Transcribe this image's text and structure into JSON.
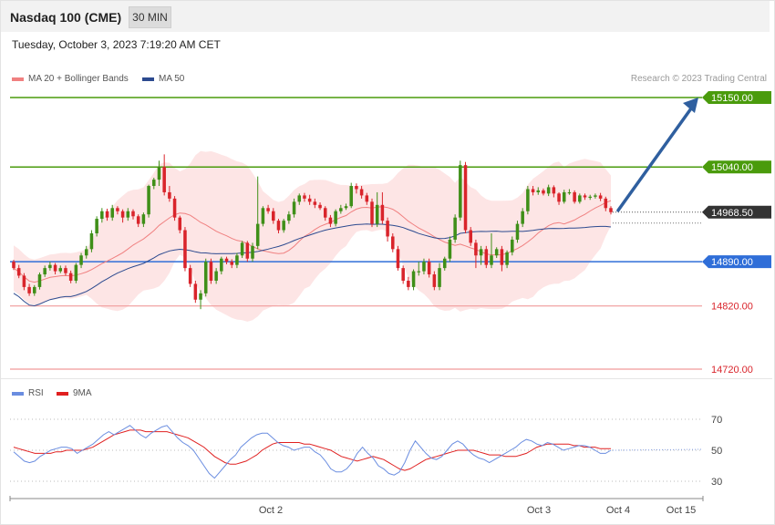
{
  "header": {
    "title": "Nasdaq 100 (CME)",
    "timeframe": "30 MIN"
  },
  "timestamp": "Tuesday, October 3, 2023 7:19:20 AM CET",
  "credit": "Research © 2023 Trading Central",
  "colors": {
    "up": "#3f8f18",
    "down": "#d9242b",
    "band_fill": "#fde1e1",
    "ma20": "#f08080",
    "ma50": "#2c4a8f",
    "green_level": "#4a9b0c",
    "blue_level": "#2f6ed8",
    "red_level": "#f19a9a",
    "rsi": "#6a8de0",
    "rsi_ma": "#e02020",
    "current_tag": "#333333",
    "arrow": "#2f5f9f"
  },
  "legend": {
    "ma20_label": "MA 20 + Bollinger Bands",
    "ma50_label": "MA 50",
    "rsi_label": "RSI",
    "rsi_ma_label": "9MA"
  },
  "chart_data": [
    {
      "type": "candlestick",
      "title": "Nasdaq 100 (CME)",
      "price_range": [
        14700,
        15170
      ],
      "levels": [
        {
          "label": "15150.00",
          "value": 15150,
          "kind": "resistance-2",
          "color": "green"
        },
        {
          "label": "15040.00",
          "value": 15040,
          "kind": "resistance-1",
          "color": "green"
        },
        {
          "label": "14968.50",
          "value": 14968.5,
          "kind": "current",
          "color": "dark"
        },
        {
          "label": "14890.00",
          "value": 14890,
          "kind": "pivot",
          "color": "blue"
        },
        {
          "label": "14820.00",
          "value": 14820,
          "kind": "support-1",
          "color": "red"
        },
        {
          "label": "14720.00",
          "value": 14720,
          "kind": "support-2",
          "color": "red"
        }
      ],
      "projection": {
        "from": 14968.5,
        "to": 15150
      },
      "candles": [
        [
          14890,
          14880,
          14893,
          14877
        ],
        [
          14880,
          14868,
          14885,
          14864
        ],
        [
          14868,
          14850,
          14872,
          14845
        ],
        [
          14850,
          14840,
          14855,
          14836
        ],
        [
          14840,
          14850,
          14853,
          14836
        ],
        [
          14850,
          14870,
          14873,
          14846
        ],
        [
          14870,
          14880,
          14884,
          14866
        ],
        [
          14880,
          14885,
          14890,
          14876
        ],
        [
          14885,
          14875,
          14888,
          14870
        ],
        [
          14875,
          14880,
          14884,
          14872
        ],
        [
          14880,
          14872,
          14884,
          14868
        ],
        [
          14872,
          14860,
          14876,
          14856
        ],
        [
          14860,
          14885,
          14888,
          14856
        ],
        [
          14885,
          14900,
          14904,
          14880
        ],
        [
          14900,
          14910,
          14915,
          14895
        ],
        [
          14910,
          14935,
          14940,
          14905
        ],
        [
          14935,
          14958,
          14962,
          14930
        ],
        [
          14958,
          14970,
          14975,
          14952
        ],
        [
          14970,
          14960,
          14974,
          14955
        ],
        [
          14960,
          14975,
          14980,
          14955
        ],
        [
          14975,
          14970,
          14978,
          14965
        ],
        [
          14970,
          14960,
          14973,
          14952
        ],
        [
          14960,
          14970,
          14975,
          14955
        ],
        [
          14970,
          14962,
          14973,
          14957
        ],
        [
          14962,
          14950,
          14965,
          14945
        ],
        [
          14950,
          14965,
          14968,
          14945
        ],
        [
          14965,
          15010,
          15012,
          14960
        ],
        [
          15010,
          15020,
          15023,
          15005
        ],
        [
          15020,
          15040,
          15050,
          15010
        ],
        [
          15040,
          15000,
          15060,
          14995
        ],
        [
          15000,
          14990,
          15010,
          14985
        ],
        [
          14990,
          14960,
          14994,
          14955
        ],
        [
          14960,
          14940,
          14963,
          14935
        ],
        [
          14940,
          14880,
          14945,
          14875
        ],
        [
          14880,
          14855,
          14885,
          14850
        ],
        [
          14855,
          14830,
          14860,
          14825
        ],
        [
          14830,
          14840,
          14845,
          14815
        ],
        [
          14840,
          14890,
          14895,
          14835
        ],
        [
          14890,
          14860,
          14895,
          14855
        ],
        [
          14860,
          14875,
          14880,
          14855
        ],
        [
          14875,
          14895,
          14898,
          14870
        ],
        [
          14895,
          14890,
          14898,
          14886
        ],
        [
          14890,
          14885,
          14894,
          14880
        ],
        [
          14885,
          14900,
          14904,
          14880
        ],
        [
          14900,
          14920,
          14923,
          14896
        ],
        [
          14920,
          14895,
          14923,
          14890
        ],
        [
          14895,
          14915,
          14920,
          14890
        ],
        [
          14915,
          14950,
          15025,
          14910
        ],
        [
          14950,
          14975,
          14978,
          14946
        ],
        [
          14975,
          14970,
          14980,
          14966
        ],
        [
          14970,
          14955,
          14975,
          14950
        ],
        [
          14955,
          14940,
          14958,
          14935
        ],
        [
          14940,
          14955,
          14958,
          14936
        ],
        [
          14955,
          14965,
          14970,
          14950
        ],
        [
          14965,
          14985,
          14990,
          14960
        ],
        [
          14985,
          14995,
          14998,
          14980
        ],
        [
          14995,
          14990,
          14999,
          14985
        ],
        [
          14990,
          14985,
          14996,
          14980
        ],
        [
          14985,
          14980,
          14990,
          14975
        ],
        [
          14980,
          14975,
          14984,
          14972
        ],
        [
          14975,
          14960,
          14978,
          14955
        ],
        [
          14960,
          14950,
          14964,
          14945
        ],
        [
          14950,
          14970,
          14973,
          14946
        ],
        [
          14970,
          14975,
          14980,
          14966
        ],
        [
          14975,
          14978,
          14982,
          14972
        ],
        [
          14978,
          15010,
          15015,
          14975
        ],
        [
          15010,
          15005,
          15014,
          14998
        ],
        [
          15005,
          14995,
          15010,
          14990
        ],
        [
          14995,
          14985,
          14999,
          14980
        ],
        [
          14985,
          14950,
          14990,
          14945
        ],
        [
          14950,
          14980,
          15000,
          14945
        ],
        [
          14980,
          14955,
          15000,
          14950
        ],
        [
          14955,
          14930,
          14960,
          14922
        ],
        [
          14930,
          14910,
          14935,
          14905
        ],
        [
          14910,
          14880,
          14915,
          14876
        ],
        [
          14880,
          14860,
          14884,
          14855
        ],
        [
          14860,
          14850,
          14866,
          14845
        ],
        [
          14850,
          14875,
          14878,
          14845
        ],
        [
          14875,
          14875,
          14890,
          14868
        ],
        [
          14875,
          14890,
          14895,
          14870
        ],
        [
          14890,
          14870,
          14895,
          14865
        ],
        [
          14870,
          14850,
          14875,
          14845
        ],
        [
          14850,
          14880,
          14888,
          14845
        ],
        [
          14880,
          14895,
          14898,
          14876
        ],
        [
          14895,
          14925,
          14930,
          14890
        ],
        [
          14925,
          14960,
          14965,
          14920
        ],
        [
          14960,
          15043,
          15050,
          14955
        ],
        [
          15043,
          14940,
          15048,
          14935
        ],
        [
          14940,
          14920,
          14945,
          14915
        ],
        [
          14920,
          14900,
          14925,
          14880
        ],
        [
          14900,
          14910,
          14915,
          14885
        ],
        [
          14910,
          14885,
          14915,
          14880
        ],
        [
          14885,
          14900,
          14935,
          14880
        ],
        [
          14900,
          14910,
          14913,
          14896
        ],
        [
          14910,
          14885,
          14915,
          14875
        ],
        [
          14885,
          14905,
          14908,
          14880
        ],
        [
          14905,
          14925,
          14930,
          14900
        ],
        [
          14925,
          14950,
          14955,
          14920
        ],
        [
          14950,
          14970,
          14975,
          14945
        ],
        [
          14970,
          15005,
          15010,
          14965
        ],
        [
          15005,
          15000,
          15010,
          14995
        ],
        [
          15000,
          15003,
          15008,
          14996
        ],
        [
          15003,
          14998,
          15006,
          14995
        ],
        [
          14998,
          15008,
          15012,
          14994
        ],
        [
          15008,
          14998,
          15011,
          14992
        ],
        [
          14998,
          14985,
          15000,
          14980
        ],
        [
          14985,
          15000,
          15004,
          14982
        ],
        [
          15000,
          15000,
          15005,
          14996
        ],
        [
          15000,
          14985,
          15003,
          14982
        ],
        [
          14985,
          14995,
          14998,
          14982
        ],
        [
          14995,
          14992,
          14998,
          14988
        ],
        [
          14992,
          14993,
          14996,
          14988
        ],
        [
          14993,
          14995,
          14998,
          14990
        ],
        [
          14995,
          14990,
          14999,
          14986
        ],
        [
          14990,
          14975,
          14993,
          14970
        ],
        [
          14975,
          14968.5,
          14978,
          14965
        ]
      ]
    },
    {
      "type": "line",
      "title": "RSI",
      "y_ticks": [
        70,
        50,
        30
      ],
      "series": [
        {
          "name": "RSI",
          "values": [
            49,
            46,
            43,
            42,
            43,
            46,
            48,
            50,
            51,
            52,
            52,
            51,
            48,
            50,
            52,
            54,
            57,
            60,
            62,
            60,
            62,
            64,
            66,
            63,
            60,
            58,
            61,
            63,
            65,
            66,
            62,
            58,
            55,
            53,
            50,
            45,
            40,
            35,
            32,
            36,
            40,
            44,
            47,
            52,
            55,
            58,
            60,
            61,
            61,
            58,
            55,
            53,
            52,
            50,
            51,
            52,
            52,
            49,
            47,
            43,
            38,
            36,
            36,
            38,
            42,
            48,
            52,
            48,
            45,
            40,
            38,
            35,
            34,
            36,
            42,
            50,
            56,
            52,
            48,
            45,
            44,
            46,
            50,
            54,
            56,
            54,
            50,
            47,
            45,
            44,
            42,
            44,
            46,
            48,
            50,
            52,
            55,
            57,
            56,
            54,
            53,
            55,
            54,
            52,
            50,
            51,
            52,
            53,
            53,
            52,
            50,
            48,
            48,
            50
          ]
        },
        {
          "name": "9MA",
          "values": [
            52,
            51,
            50,
            49,
            48,
            48,
            48,
            48,
            49,
            49,
            50,
            50,
            50,
            50,
            51,
            52,
            54,
            56,
            58,
            60,
            61,
            62,
            63,
            63,
            63,
            62,
            62,
            62,
            62,
            62,
            61,
            60,
            59,
            58,
            56,
            54,
            52,
            49,
            46,
            44,
            42,
            41,
            41,
            42,
            43,
            45,
            47,
            50,
            52,
            54,
            55,
            55,
            55,
            55,
            55,
            54,
            54,
            53,
            52,
            51,
            50,
            48,
            46,
            45,
            44,
            43,
            44,
            45,
            46,
            45,
            44,
            42,
            40,
            38,
            37,
            38,
            40,
            42,
            44,
            45,
            46,
            47,
            48,
            49,
            50,
            50,
            50,
            50,
            49,
            48,
            47,
            47,
            47,
            46,
            46,
            46,
            47,
            48,
            50,
            52,
            53,
            54,
            54,
            54,
            54,
            54,
            53,
            53,
            52,
            52,
            52,
            51,
            51,
            51
          ]
        }
      ]
    }
  ],
  "x_axis": {
    "labels": [
      "Oct 2",
      "Oct 3",
      "Oct 4",
      "Oct 15"
    ]
  }
}
